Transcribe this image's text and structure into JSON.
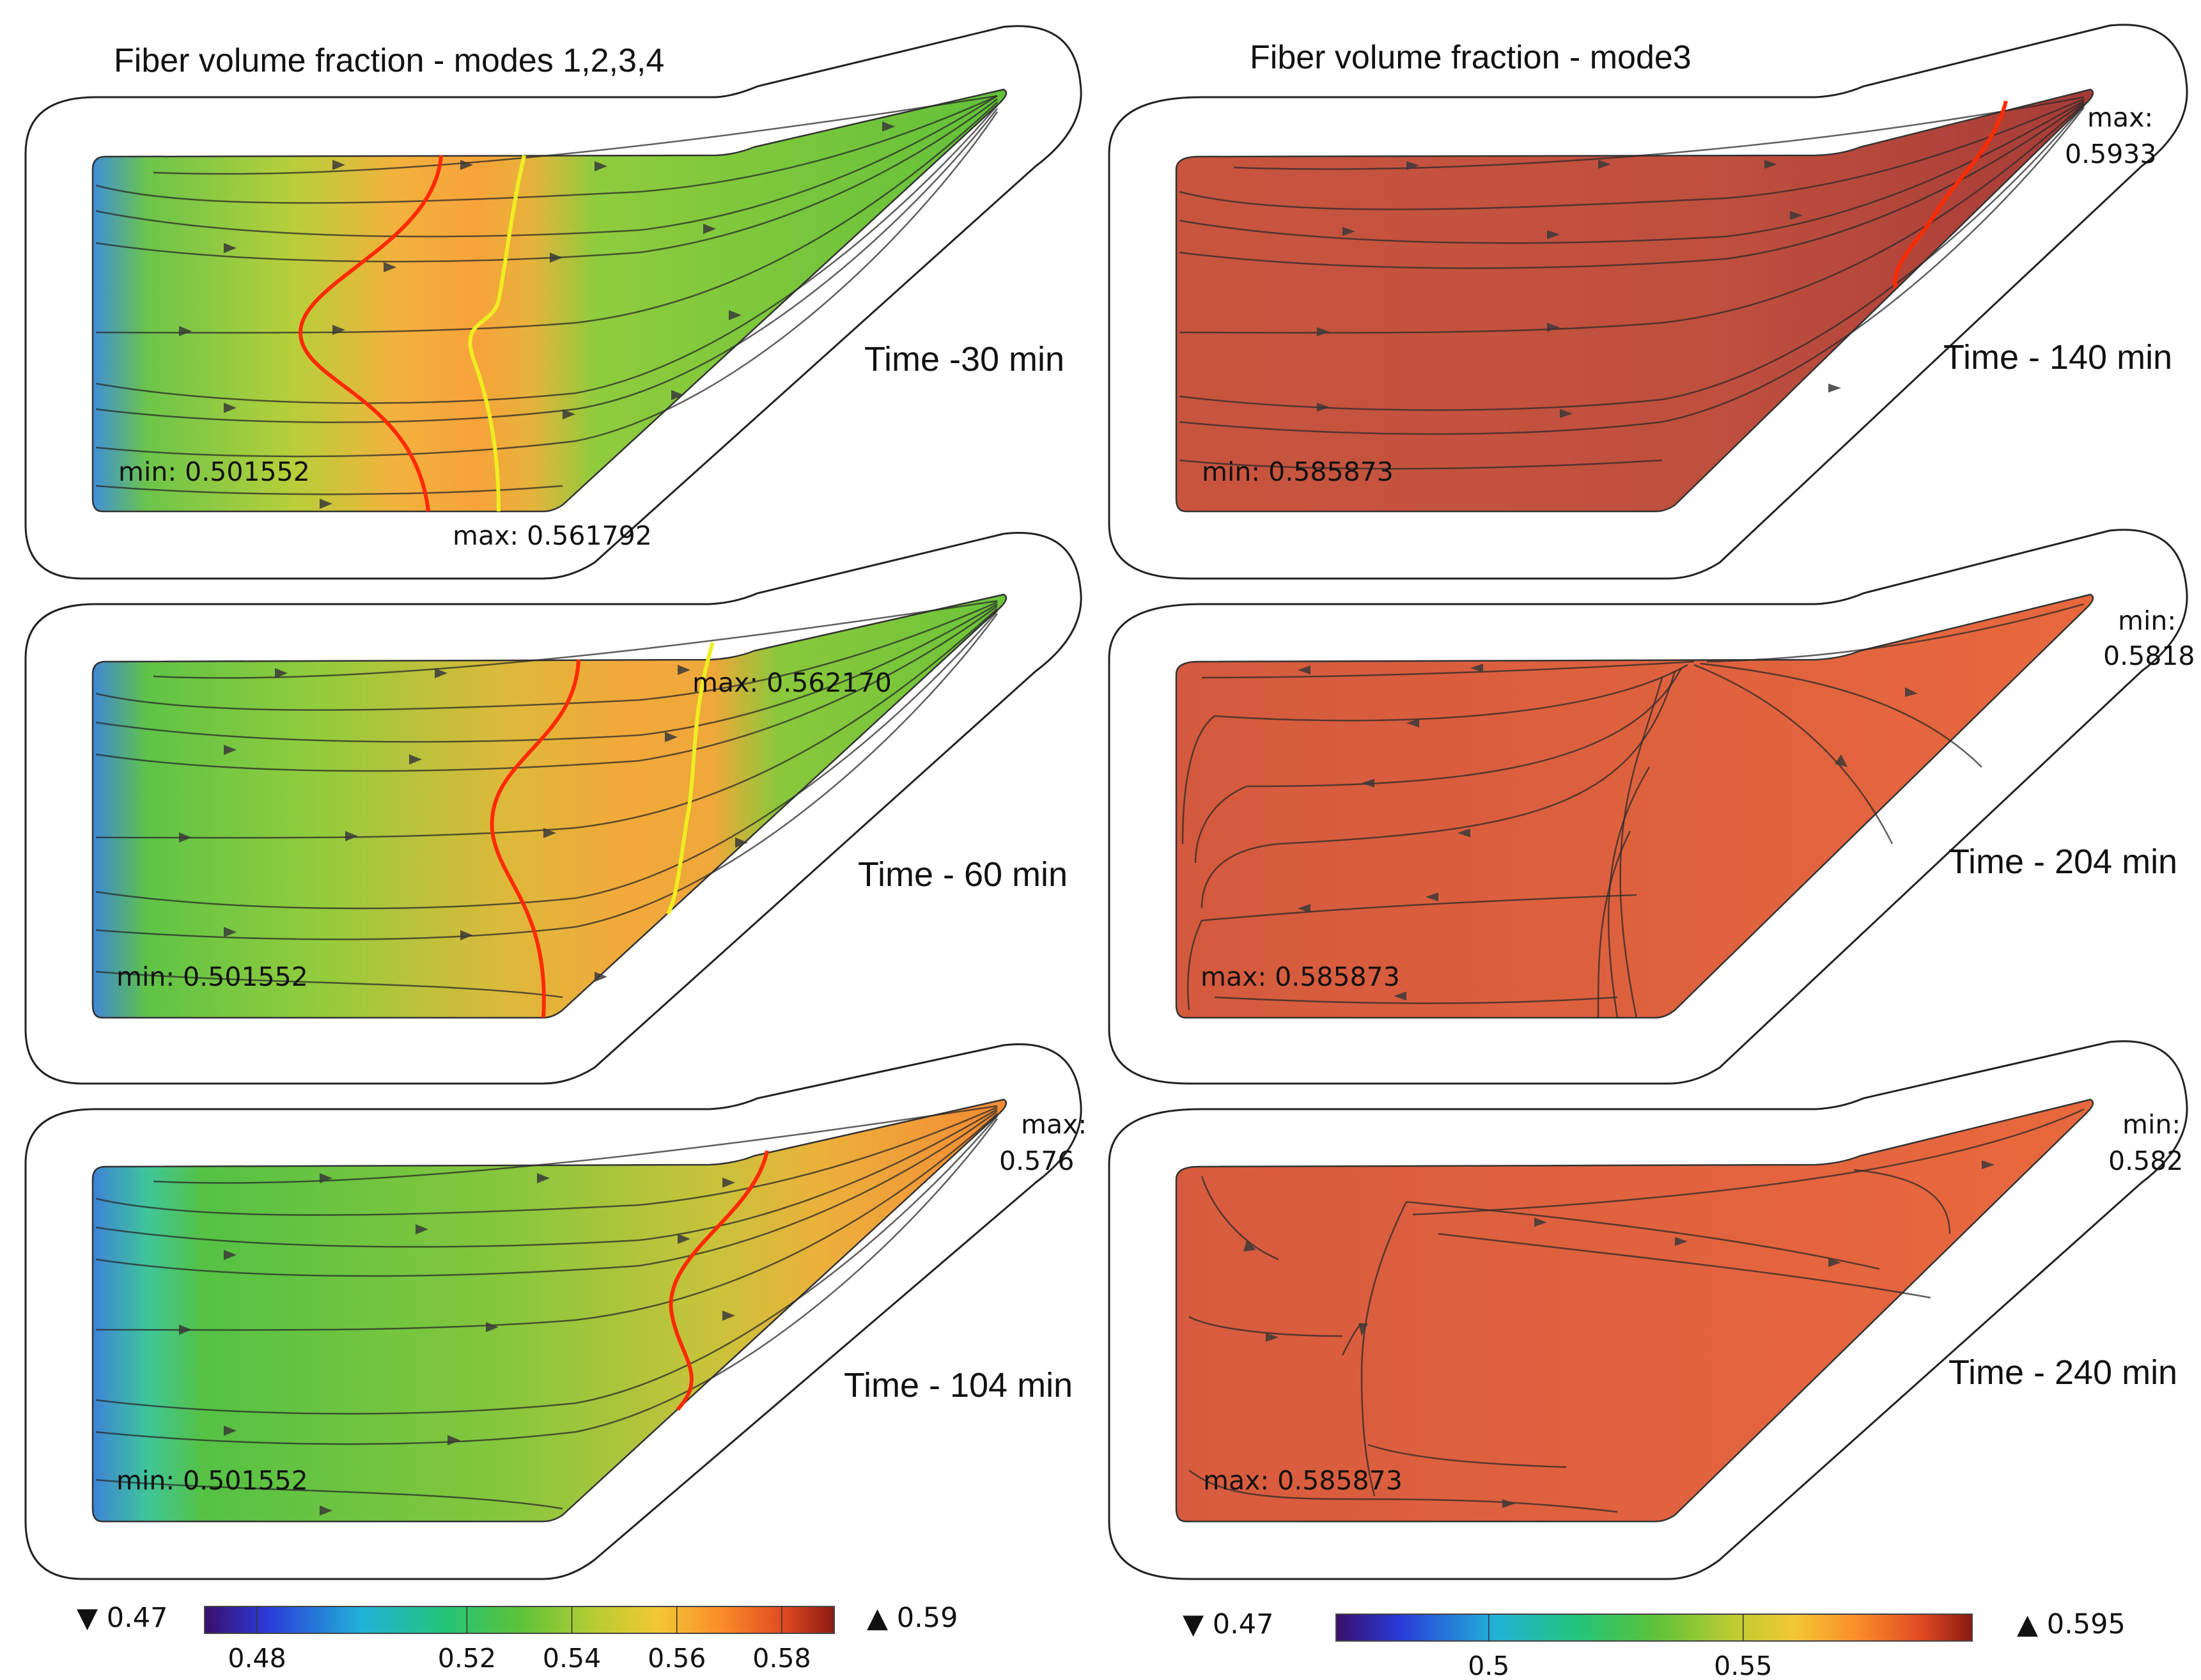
{
  "figure": {
    "left_title": "Fiber volume fraction - modes 1,2,3,4",
    "right_title": "Fiber volume fraction - mode3",
    "colors": {
      "blue": "#2b5fd9",
      "green": "#5cc23a",
      "yellow": "#d8cc3a",
      "orange": "#f4a33a",
      "red_domain": "#c9533d",
      "dark_red_domain": "#b24a3a",
      "orange_red_domain": "#dd5f3c",
      "front_red": "#ff2a00",
      "front_yellow": "#eeee22"
    }
  },
  "panels": [
    {
      "id": "L1",
      "time": "Time -30 min",
      "labels": [
        {
          "text": "min: 0.501552"
        },
        {
          "text": "max: 0.561792"
        }
      ],
      "fronts": 2
    },
    {
      "id": "L2",
      "time": "Time - 60 min",
      "labels": [
        {
          "text": "min: 0.501552"
        },
        {
          "text": "max: 0.562170"
        }
      ],
      "fronts": 2
    },
    {
      "id": "L3",
      "time": "Time - 104 min",
      "labels": [
        {
          "text": "min: 0.501552"
        },
        {
          "text": "max:"
        },
        {
          "text": "0.576"
        }
      ],
      "fronts": 1
    },
    {
      "id": "R1",
      "time": "Time - 140 min",
      "labels": [
        {
          "text": "min: 0.585873"
        },
        {
          "text": "max:"
        },
        {
          "text": "0.5933"
        }
      ],
      "fronts": 1
    },
    {
      "id": "R2",
      "time": "Time - 204 min",
      "labels": [
        {
          "text": "max: 0.585873"
        },
        {
          "text": "min:"
        },
        {
          "text": "0.5818"
        }
      ],
      "fronts": 0
    },
    {
      "id": "R3",
      "time": "Time - 240 min",
      "labels": [
        {
          "text": "max: 0.585873"
        },
        {
          "text": "min:"
        },
        {
          "text": "0.582"
        }
      ],
      "fronts": 0
    }
  ],
  "colorbars": [
    {
      "id": "left",
      "min_label": "▼ 0.47",
      "max_label": "▲ 0.59",
      "ticks": [
        {
          "text": "0.48",
          "value": 0.48
        },
        {
          "text": "0.52",
          "value": 0.52
        },
        {
          "text": "0.54",
          "value": 0.54
        },
        {
          "text": "0.56",
          "value": 0.56
        },
        {
          "text": "0.58",
          "value": 0.58
        }
      ],
      "range": [
        0.47,
        0.59
      ]
    },
    {
      "id": "right",
      "min_label": "▼ 0.47",
      "max_label": "▲ 0.595",
      "ticks": [
        {
          "text": "0.5",
          "value": 0.5
        },
        {
          "text": "0.55",
          "value": 0.55
        }
      ],
      "range": [
        0.47,
        0.595
      ]
    }
  ]
}
